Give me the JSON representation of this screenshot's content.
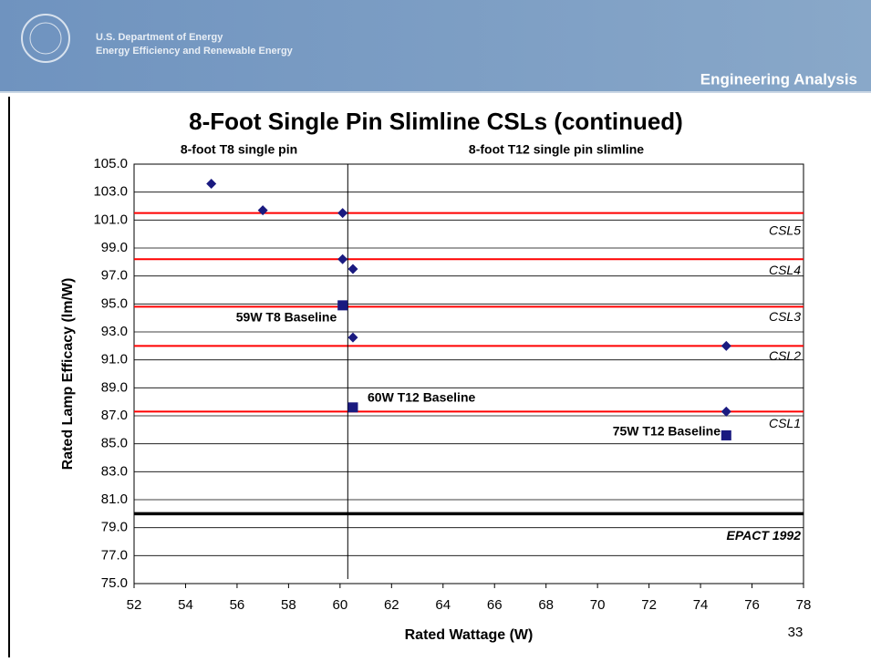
{
  "header": {
    "org": "U.S. Department of Energy",
    "division": "Energy Efficiency and Renewable Energy",
    "section": "Engineering Analysis"
  },
  "page_number": "33",
  "chart_data": {
    "type": "scatter",
    "title": "8-Foot Single Pin Slimline CSLs (continued)",
    "region_labels": [
      "8-foot T8 single pin",
      "8-foot T12 single pin slimline"
    ],
    "xlabel": "Rated Wattage (W)",
    "ylabel": "Rated Lamp Efficacy (lm/W)",
    "xlim": [
      52,
      78
    ],
    "xticks": [
      52,
      54,
      56,
      58,
      60,
      62,
      64,
      66,
      68,
      70,
      72,
      74,
      76,
      78
    ],
    "ylim": [
      75,
      105
    ],
    "yticks": [
      {
        "value": 75,
        "label": "75.0"
      },
      {
        "value": 77,
        "label": "77.0"
      },
      {
        "value": 79,
        "label": "79.0"
      },
      {
        "value": 81,
        "label": "81.0"
      },
      {
        "value": 83,
        "label": "83.0"
      },
      {
        "value": 85,
        "label": "85.0"
      },
      {
        "value": 87,
        "label": "87.0"
      },
      {
        "value": 89,
        "label": "89.0"
      },
      {
        "value": 91,
        "label": "91.0"
      },
      {
        "value": 93,
        "label": "93.0"
      },
      {
        "value": 95,
        "label": "95.0"
      },
      {
        "value": 97,
        "label": "97.0"
      },
      {
        "value": 99,
        "label": "99.0"
      },
      {
        "value": 101,
        "label": "101.0"
      },
      {
        "value": 103,
        "label": "103.0"
      },
      {
        "value": 105,
        "label": "105.0"
      }
    ],
    "grid": true,
    "series": [
      {
        "marker": "diamond",
        "color": "#1a1a80",
        "x": [
          55,
          57,
          60.1,
          60.1,
          60.5,
          60.5,
          75,
          75
        ],
        "values": [
          103.6,
          101.7,
          101.5,
          98.2,
          97.5,
          92.6,
          92.0,
          87.3
        ]
      },
      {
        "marker": "square",
        "color": "#1a1a80",
        "x": [
          60.1,
          60.5,
          75
        ],
        "values": [
          94.9,
          87.6,
          85.6
        ]
      }
    ],
    "hlines": [
      {
        "value": 101.5,
        "label": "CSL5",
        "color": "#ff0000"
      },
      {
        "value": 98.2,
        "label": "CSL4",
        "color": "#ff0000"
      },
      {
        "value": 94.8,
        "label": "CSL3",
        "color": "#ff0000"
      },
      {
        "value": 92.0,
        "label": "CSL2",
        "color": "#ff0000"
      },
      {
        "value": 87.3,
        "label": "CSL1",
        "color": "#ff0000"
      },
      {
        "value": 80.0,
        "label": "EPACT 1992",
        "color": "#000000"
      }
    ],
    "vline": 60.3,
    "annotations": [
      "59W T8 Baseline",
      "60W T12 Baseline",
      "75W T12 Baseline"
    ]
  }
}
